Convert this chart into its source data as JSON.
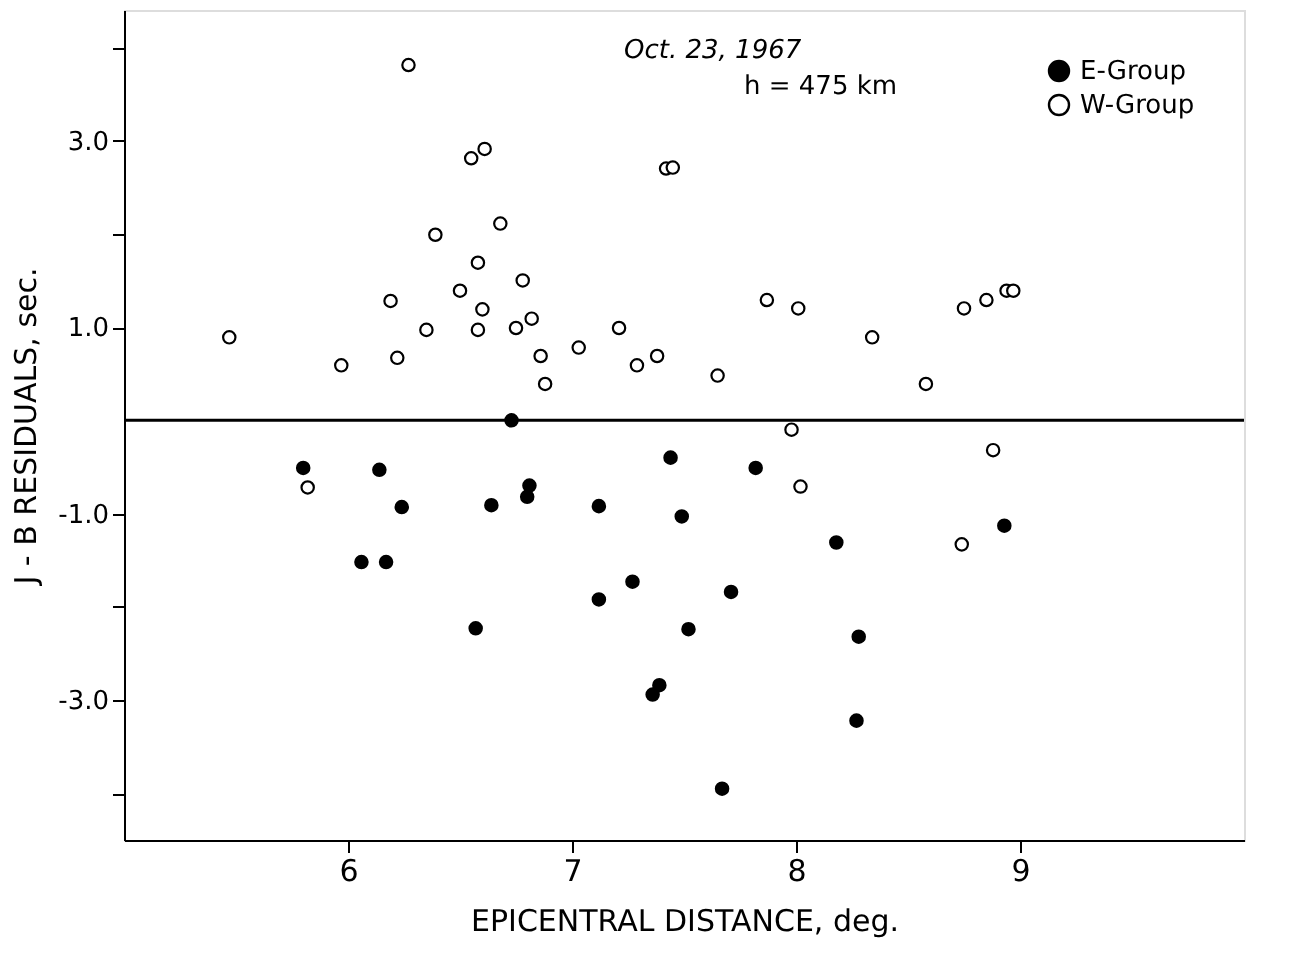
{
  "chart_data": {
    "type": "scatter",
    "xlabel": "EPICENTRAL DISTANCE, deg.",
    "ylabel": "J - B RESIDUALS, sec.",
    "annotations": [
      "Oct. 23, 1967",
      "h = 475 km"
    ],
    "xlim": [
      5,
      10
    ],
    "xticks": [
      6,
      7,
      8,
      9
    ],
    "ylim": [
      -4.5,
      4.4
    ],
    "yticks": [
      {
        "value": 4,
        "label": null
      },
      {
        "value": 3,
        "label": "3.0"
      },
      {
        "value": 2,
        "label": null
      },
      {
        "value": 1,
        "label": "1.0"
      },
      {
        "value": -1,
        "label": "-1.0"
      },
      {
        "value": -2,
        "label": null
      },
      {
        "value": -3,
        "label": "-3.0"
      },
      {
        "value": -4,
        "label": null
      }
    ],
    "ref_lines": [
      {
        "axis": "y",
        "value": 0
      }
    ],
    "grid": false,
    "legend": "top right",
    "marker": "circle",
    "series": [
      {
        "name": "E-Group",
        "color": "#000000",
        "x": [
          6.73,
          5.8,
          6.14,
          6.24,
          6.64,
          6.81,
          6.8,
          7.12,
          6.06,
          6.17,
          6.57,
          7.12,
          7.27,
          7.36,
          7.39,
          7.44,
          7.82,
          7.49,
          8.18,
          8.93,
          7.71,
          7.52,
          8.28,
          8.27,
          7.67
        ],
        "values": [
          0.0,
          -0.51,
          -0.53,
          -0.93,
          -0.91,
          -0.7,
          -0.82,
          -0.92,
          -1.52,
          -1.52,
          -2.23,
          -1.92,
          -1.73,
          -2.94,
          -2.84,
          -0.4,
          -0.51,
          -1.03,
          -1.31,
          -1.13,
          -1.84,
          -2.24,
          -2.32,
          -3.22,
          -3.95
        ]
      },
      {
        "name": "W-Group",
        "color": "#ffffff",
        "x": [
          5.47,
          5.97,
          6.19,
          6.22,
          6.27,
          6.35,
          6.39,
          6.5,
          6.55,
          6.58,
          6.58,
          6.6,
          6.61,
          6.68,
          6.75,
          6.78,
          6.82,
          6.86,
          6.88,
          7.03,
          7.21,
          7.29,
          7.38,
          7.42,
          7.45,
          7.65,
          7.87,
          8.01,
          8.34,
          8.58,
          8.75,
          8.85,
          8.94,
          8.97,
          5.82,
          7.98,
          8.02,
          8.88,
          8.74
        ],
        "values": [
          0.89,
          0.59,
          1.28,
          0.67,
          3.81,
          0.97,
          1.99,
          1.39,
          2.81,
          0.97,
          1.69,
          1.19,
          2.91,
          2.11,
          0.99,
          1.5,
          1.09,
          0.69,
          0.39,
          0.78,
          0.99,
          0.59,
          0.69,
          2.7,
          2.71,
          0.48,
          1.29,
          1.2,
          0.89,
          0.39,
          1.2,
          1.29,
          1.39,
          1.39,
          -0.72,
          -0.1,
          -0.71,
          -0.32,
          -1.33
        ]
      }
    ]
  }
}
